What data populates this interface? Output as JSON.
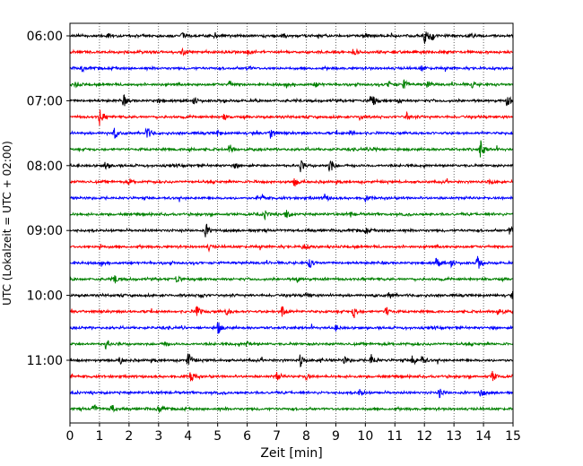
{
  "chart_data": {
    "type": "line",
    "chart_kind": "helicorder",
    "xlabel": "Zeit  [min]",
    "ylabel": "UTC (Lokalzeit = UTC + 02:00)",
    "xlim": [
      0,
      15
    ],
    "x_ticks": [
      0,
      1,
      2,
      3,
      4,
      5,
      6,
      7,
      8,
      9,
      10,
      11,
      12,
      13,
      14,
      15
    ],
    "x_tick_labels": [
      "0",
      "1",
      "2",
      "3",
      "4",
      "5",
      "6",
      "7",
      "8",
      "9",
      "10",
      "11",
      "12",
      "13",
      "14",
      "15"
    ],
    "y_tick_labels": [
      "06:00",
      "07:00",
      "08:00",
      "09:00",
      "10:00",
      "11:00"
    ],
    "y_tick_rows": [
      0,
      4,
      8,
      12,
      16,
      20
    ],
    "trace_interval_min": 15,
    "vertical_grid": "dotted",
    "colors": [
      "#000000",
      "#ff0000",
      "#0000ff",
      "#008000"
    ],
    "traces": [
      {
        "row": 0,
        "events": [
          [
            12.0,
            1.0
          ],
          [
            12.2,
            0.4
          ],
          [
            1.3,
            0.3
          ],
          [
            3.8,
            0.3
          ],
          [
            4.9,
            0.3
          ],
          [
            7.2,
            0.35
          ],
          [
            10.0,
            0.3
          ],
          [
            13.5,
            0.3
          ]
        ]
      },
      {
        "row": 1,
        "events": [
          [
            3.8,
            0.3
          ],
          [
            6.0,
            0.3
          ],
          [
            9.6,
            0.35
          ],
          [
            12.7,
            0.3
          ]
        ]
      },
      {
        "row": 2,
        "events": [
          [
            0.4,
            0.3
          ],
          [
            6.0,
            0.35
          ],
          [
            11.9,
            0.3
          ]
        ]
      },
      {
        "row": 3,
        "events": [
          [
            0.2,
            0.3
          ],
          [
            5.4,
            0.4
          ],
          [
            8.3,
            0.3
          ],
          [
            10.8,
            0.4
          ],
          [
            11.3,
            0.5
          ],
          [
            12.1,
            0.3
          ],
          [
            13.6,
            0.3
          ]
        ]
      },
      {
        "row": 4,
        "events": [
          [
            1.8,
            0.7
          ],
          [
            3.0,
            0.3
          ],
          [
            4.2,
            0.35
          ],
          [
            10.2,
            1.0
          ],
          [
            11.1,
            0.3
          ],
          [
            14.8,
            0.6
          ]
        ]
      },
      {
        "row": 5,
        "events": [
          [
            1.0,
            0.8
          ],
          [
            5.2,
            0.3
          ],
          [
            9.8,
            0.3
          ],
          [
            11.4,
            0.4
          ]
        ]
      },
      {
        "row": 6,
        "events": [
          [
            1.5,
            0.55
          ],
          [
            2.6,
            0.85
          ],
          [
            5.0,
            0.3
          ],
          [
            6.8,
            0.8
          ],
          [
            9.5,
            0.3
          ]
        ]
      },
      {
        "row": 7,
        "events": [
          [
            5.4,
            0.55
          ],
          [
            13.9,
            1.0
          ],
          [
            4.0,
            0.3
          ],
          [
            10.3,
            0.3
          ]
        ]
      },
      {
        "row": 8,
        "events": [
          [
            1.2,
            0.5
          ],
          [
            7.8,
            0.65
          ],
          [
            8.8,
            0.85
          ],
          [
            5.6,
            0.3
          ]
        ]
      },
      {
        "row": 9,
        "events": [
          [
            7.6,
            0.6
          ],
          [
            14.2,
            0.3
          ],
          [
            2.0,
            0.3
          ]
        ]
      },
      {
        "row": 10,
        "events": [
          [
            8.6,
            0.5
          ],
          [
            10.0,
            0.3
          ],
          [
            6.5,
            0.3
          ]
        ]
      },
      {
        "row": 11,
        "events": [
          [
            7.3,
            0.65
          ],
          [
            6.6,
            0.4
          ],
          [
            9.5,
            0.3
          ]
        ]
      },
      {
        "row": 12,
        "events": [
          [
            4.6,
            0.75
          ],
          [
            14.9,
            0.5
          ],
          [
            10.0,
            0.3
          ]
        ]
      },
      {
        "row": 13,
        "events": [
          [
            7.9,
            0.4
          ],
          [
            4.7,
            0.3
          ],
          [
            1.0,
            0.3
          ]
        ]
      },
      {
        "row": 14,
        "events": [
          [
            8.1,
            0.6
          ],
          [
            12.4,
            0.55
          ],
          [
            13.8,
            0.75
          ],
          [
            12.9,
            0.35
          ]
        ]
      },
      {
        "row": 15,
        "events": [
          [
            1.5,
            0.6
          ],
          [
            3.6,
            0.55
          ],
          [
            7.7,
            0.3
          ]
        ]
      },
      {
        "row": 16,
        "events": [
          [
            10.8,
            0.4
          ],
          [
            15.0,
            0.6
          ],
          [
            4.4,
            0.3
          ],
          [
            8.0,
            0.3
          ]
        ]
      },
      {
        "row": 17,
        "events": [
          [
            4.3,
            0.65
          ],
          [
            5.3,
            0.4
          ],
          [
            7.2,
            0.85
          ],
          [
            9.6,
            0.8
          ],
          [
            10.7,
            0.55
          ],
          [
            14.5,
            0.6
          ]
        ]
      },
      {
        "row": 18,
        "events": [
          [
            5.0,
            0.7
          ],
          [
            9.0,
            0.3
          ]
        ]
      },
      {
        "row": 19,
        "events": [
          [
            1.2,
            0.55
          ],
          [
            3.2,
            0.3
          ],
          [
            6.0,
            0.3
          ]
        ]
      },
      {
        "row": 20,
        "events": [
          [
            1.7,
            0.4
          ],
          [
            4.0,
            0.9
          ],
          [
            7.8,
            0.65
          ],
          [
            9.3,
            0.45
          ],
          [
            10.2,
            0.75
          ],
          [
            11.6,
            0.6
          ],
          [
            11.9,
            0.55
          ],
          [
            8.5,
            0.3
          ]
        ]
      },
      {
        "row": 21,
        "events": [
          [
            4.1,
            0.75
          ],
          [
            7.0,
            0.5
          ],
          [
            8.0,
            0.4
          ],
          [
            14.3,
            0.6
          ]
        ]
      },
      {
        "row": 22,
        "events": [
          [
            9.8,
            0.4
          ],
          [
            12.5,
            0.45
          ],
          [
            13.9,
            0.5
          ]
        ]
      },
      {
        "row": 23,
        "events": [
          [
            0.8,
            0.6
          ],
          [
            1.4,
            0.55
          ],
          [
            3.0,
            0.55
          ]
        ]
      }
    ]
  }
}
